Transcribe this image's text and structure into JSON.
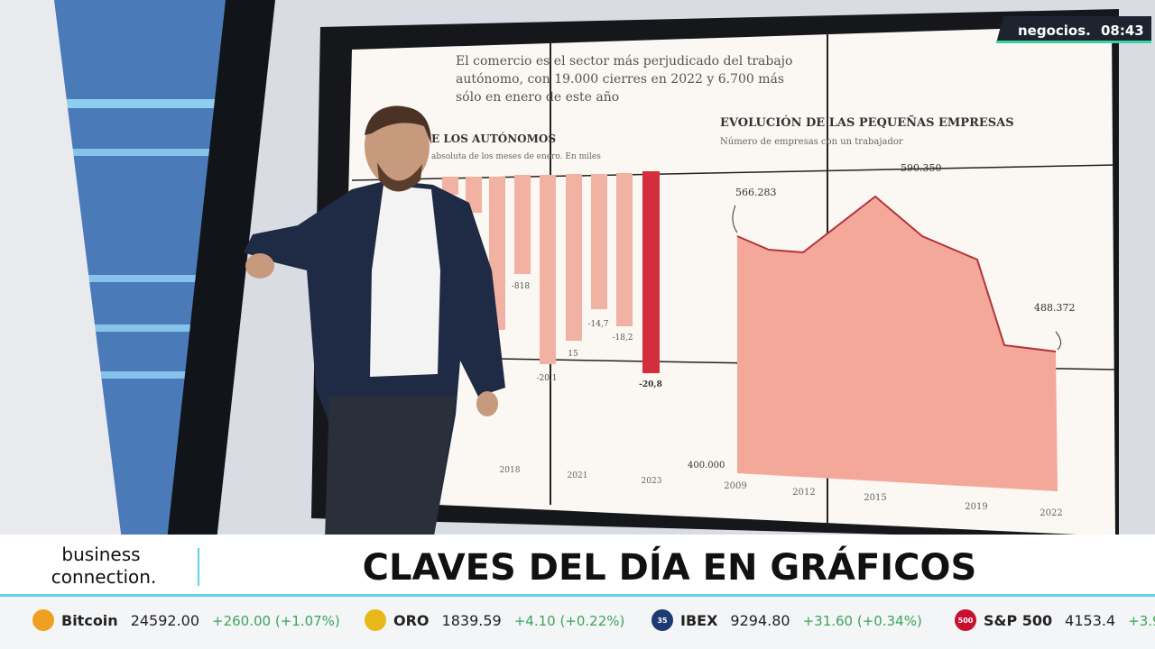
{
  "header": {
    "brand": "negocios.",
    "time": "08:43"
  },
  "screen": {
    "headline": [
      "El comercio es el sector más perjudicado del trabajo",
      "autónomo, con 19.000 cierres en 2022 y 6.700 más",
      "sólo en enero de este año"
    ],
    "left_chart": {
      "title": "E LOS AUTÓNOMOS",
      "subtitle": "absoluta de los meses de enero. En miles",
      "labels": [
        "-818",
        "-20,1",
        "15",
        "-14,7",
        "-18,2",
        "-20,8"
      ],
      "years": [
        "2018",
        "2021",
        "2023"
      ]
    },
    "right_chart": {
      "title": "EVOLUCIÓN DE LAS PEQUEÑAS EMPRESAS",
      "subtitle": "Número de empresas con un trabajador",
      "labels": [
        "566.283",
        "590.350",
        "488.372"
      ],
      "baseline": "400.000",
      "years": [
        "2009",
        "2012",
        "2015",
        "2019",
        "2022"
      ]
    }
  },
  "lower_third": {
    "show_lines": [
      "business",
      "connection."
    ],
    "headline": "CLAVES DEL DÍA EN GRÁFICOS"
  },
  "ticker": [
    {
      "name": "Bitcoin",
      "price": "24592.00",
      "change": "+260.00 (+1.07%)"
    },
    {
      "name": "ORO",
      "price": "1839.59",
      "change": "+4.10 (+0.22%)"
    },
    {
      "icon": "35",
      "name": "IBEX",
      "price": "9294.80",
      "change": "+31.60 (+0.34%)"
    },
    {
      "icon": "500",
      "name": "S&P 500",
      "price": "4153.4",
      "change": "+3.9"
    }
  ]
}
